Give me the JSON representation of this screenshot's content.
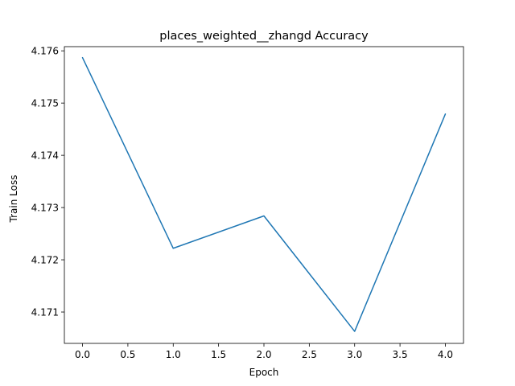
{
  "chart_data": {
    "type": "line",
    "title": "places_weighted__zhangd Accuracy",
    "xlabel": "Epoch",
    "ylabel": "Train Loss",
    "xlim": [
      -0.2,
      4.2
    ],
    "ylim": [
      4.1704,
      4.17608
    ],
    "xticks": [
      0.0,
      0.5,
      1.0,
      1.5,
      2.0,
      2.5,
      3.0,
      3.5,
      4.0
    ],
    "xtick_labels": [
      "0.0",
      "0.5",
      "1.0",
      "1.5",
      "2.0",
      "2.5",
      "3.0",
      "3.5",
      "4.0"
    ],
    "yticks": [
      4.171,
      4.172,
      4.173,
      4.174,
      4.175,
      4.176
    ],
    "ytick_labels": [
      "4.171",
      "4.172",
      "4.173",
      "4.174",
      "4.175",
      "4.176"
    ],
    "grid": false,
    "series": [
      {
        "color": "#1f77b4",
        "x": [
          0,
          1,
          2,
          3,
          4
        ],
        "y": [
          4.17587,
          4.17222,
          4.17284,
          4.17063,
          4.17479
        ]
      }
    ]
  }
}
